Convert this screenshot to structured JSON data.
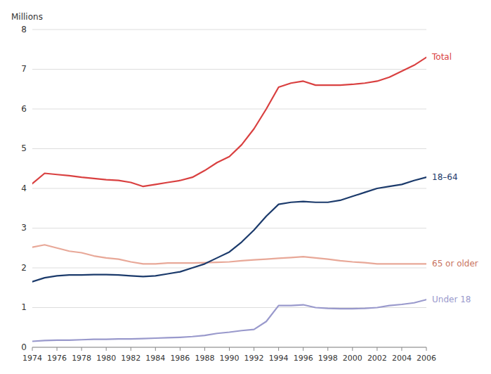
{
  "chart_data": {
    "type": "line",
    "y_label": "Millions",
    "x": [
      1974,
      1975,
      1976,
      1977,
      1978,
      1979,
      1980,
      1981,
      1982,
      1983,
      1984,
      1985,
      1986,
      1987,
      1988,
      1989,
      1990,
      1991,
      1992,
      1993,
      1994,
      1995,
      1996,
      1997,
      1998,
      1999,
      2000,
      2001,
      2002,
      2003,
      2004,
      2005,
      2006
    ],
    "series": [
      {
        "name": "Total",
        "color": "#d94040",
        "values": [
          4.12,
          4.38,
          4.35,
          4.32,
          4.28,
          4.25,
          4.22,
          4.2,
          4.15,
          4.05,
          4.1,
          4.15,
          4.2,
          4.28,
          4.45,
          4.65,
          4.8,
          5.1,
          5.5,
          6.0,
          6.55,
          6.65,
          6.7,
          6.6,
          6.6,
          6.6,
          6.62,
          6.65,
          6.7,
          6.8,
          6.95,
          7.1,
          7.3
        ]
      },
      {
        "name": "65 or older",
        "color": "#e8a898",
        "values": [
          2.52,
          2.58,
          2.5,
          2.42,
          2.38,
          2.3,
          2.25,
          2.22,
          2.15,
          2.1,
          2.1,
          2.12,
          2.12,
          2.12,
          2.13,
          2.14,
          2.15,
          2.18,
          2.2,
          2.22,
          2.24,
          2.26,
          2.28,
          2.25,
          2.22,
          2.18,
          2.15,
          2.13,
          2.1,
          2.1,
          2.1,
          2.1,
          2.1
        ]
      },
      {
        "name": "18–64",
        "color": "#1b3a6b",
        "values": [
          1.65,
          1.75,
          1.8,
          1.82,
          1.82,
          1.83,
          1.83,
          1.82,
          1.8,
          1.78,
          1.8,
          1.85,
          1.9,
          2.0,
          2.1,
          2.25,
          2.4,
          2.65,
          2.95,
          3.3,
          3.6,
          3.65,
          3.67,
          3.65,
          3.65,
          3.7,
          3.8,
          3.9,
          4.0,
          4.05,
          4.1,
          4.2,
          4.28
        ]
      },
      {
        "name": "Under 18",
        "color": "#9999cc",
        "values": [
          0.15,
          0.17,
          0.18,
          0.18,
          0.19,
          0.2,
          0.2,
          0.21,
          0.21,
          0.22,
          0.23,
          0.24,
          0.25,
          0.27,
          0.3,
          0.35,
          0.38,
          0.42,
          0.45,
          0.65,
          1.05,
          1.05,
          1.07,
          1.0,
          0.98,
          0.97,
          0.97,
          0.98,
          1.0,
          1.05,
          1.08,
          1.12,
          1.2
        ]
      }
    ],
    "xlim": [
      1974,
      2006
    ],
    "xticks": [
      1974,
      1976,
      1978,
      1980,
      1982,
      1984,
      1986,
      1988,
      1990,
      1992,
      1994,
      1996,
      1998,
      2000,
      2002,
      2004,
      2006
    ],
    "ylim": [
      0,
      8
    ],
    "yticks": [
      0,
      1,
      2,
      3,
      4,
      5,
      6,
      7,
      8
    ],
    "grid": true
  }
}
